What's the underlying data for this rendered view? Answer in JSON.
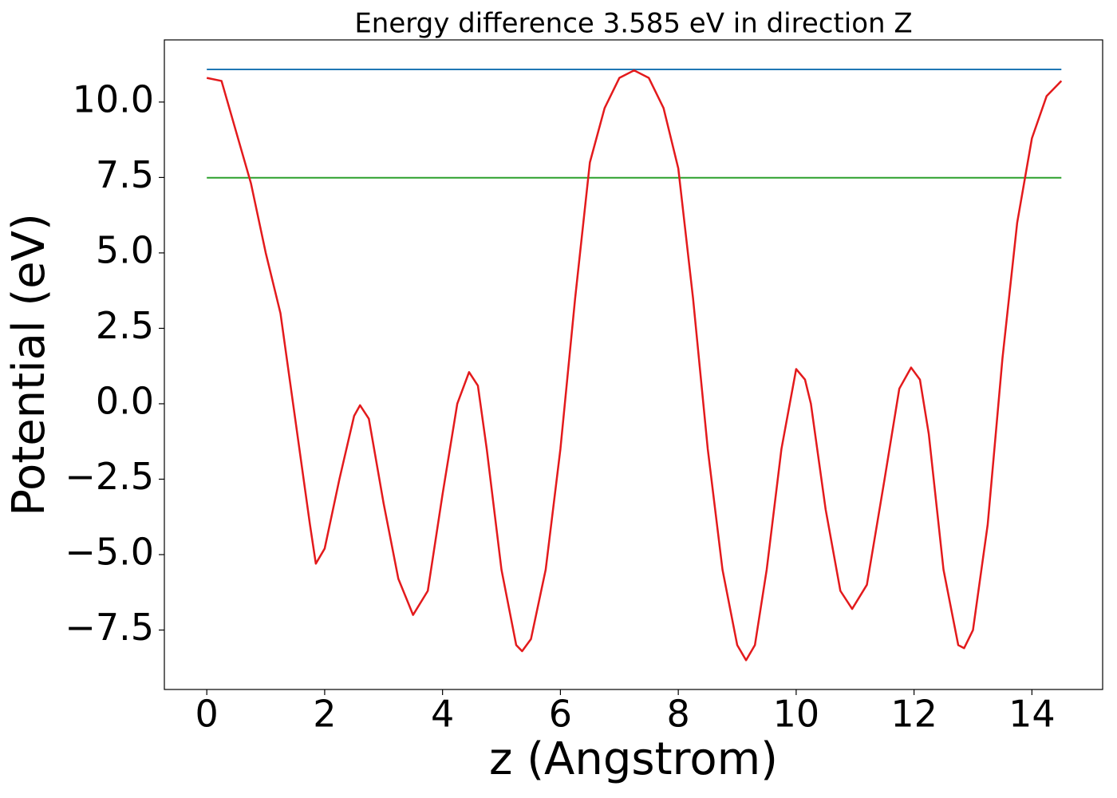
{
  "chart_data": {
    "type": "line",
    "title": "Energy difference 3.585 eV in direction Z",
    "x_label": "z (Angstrom)",
    "y_label": "Potential (eV)",
    "xlim": [
      -0.72,
      15.2
    ],
    "ylim": [
      -9.47,
      12.06
    ],
    "xticks": [
      0,
      2,
      4,
      6,
      8,
      10,
      12,
      14
    ],
    "yticks": [
      {
        "value": -7.5,
        "label": "−7.5"
      },
      {
        "value": -5,
        "label": "−5.0"
      },
      {
        "value": -2.5,
        "label": "−2.5"
      },
      {
        "value": 0,
        "label": "0.0"
      },
      {
        "value": 2.5,
        "label": "2.5"
      },
      {
        "value": 5,
        "label": "5.0"
      },
      {
        "value": 7.5,
        "label": "7.5"
      },
      {
        "value": 10,
        "label": "10.0"
      }
    ],
    "series": [
      {
        "color": "#1f77b4",
        "x": [
          0,
          14.5
        ],
        "values": [
          11.08,
          11.08
        ]
      },
      {
        "color": "#2ca02c",
        "x": [
          0,
          14.5
        ],
        "values": [
          7.49,
          7.49
        ]
      },
      {
        "color": "#e31a1c",
        "x": [
          0,
          0.25,
          0.5,
          0.75,
          1.0,
          1.25,
          1.5,
          1.75,
          1.85,
          2.0,
          2.25,
          2.5,
          2.6,
          2.75,
          3.0,
          3.25,
          3.5,
          3.75,
          4.0,
          4.25,
          4.45,
          4.6,
          4.75,
          5.0,
          5.25,
          5.35,
          5.5,
          5.75,
          6.0,
          6.25,
          6.5,
          6.75,
          7.0,
          7.25,
          7.5,
          7.75,
          8.0,
          8.25,
          8.5,
          8.75,
          9.0,
          9.15,
          9.3,
          9.5,
          9.75,
          10.0,
          10.15,
          10.25,
          10.5,
          10.75,
          10.95,
          11.2,
          11.5,
          11.75,
          11.95,
          12.1,
          12.25,
          12.5,
          12.75,
          12.85,
          13.0,
          13.25,
          13.5,
          13.75,
          14.0,
          14.25,
          14.5
        ],
        "values": [
          10.8,
          10.7,
          9.0,
          7.3,
          5.0,
          3.0,
          -0.5,
          -4.0,
          -5.3,
          -4.8,
          -2.5,
          -0.4,
          -0.05,
          -0.5,
          -3.3,
          -5.8,
          -7.0,
          -6.2,
          -3.0,
          0.0,
          1.05,
          0.6,
          -1.5,
          -5.5,
          -8.0,
          -8.2,
          -7.8,
          -5.5,
          -1.5,
          3.5,
          8.0,
          9.8,
          10.8,
          11.05,
          10.8,
          9.8,
          7.8,
          3.5,
          -1.5,
          -5.5,
          -8.0,
          -8.5,
          -8.0,
          -5.5,
          -1.5,
          1.15,
          0.8,
          0.0,
          -3.5,
          -6.2,
          -6.8,
          -6.0,
          -2.5,
          0.5,
          1.2,
          0.8,
          -1.0,
          -5.5,
          -8.0,
          -8.1,
          -7.5,
          -4.0,
          1.5,
          6.0,
          8.8,
          10.2,
          10.7
        ]
      }
    ]
  }
}
